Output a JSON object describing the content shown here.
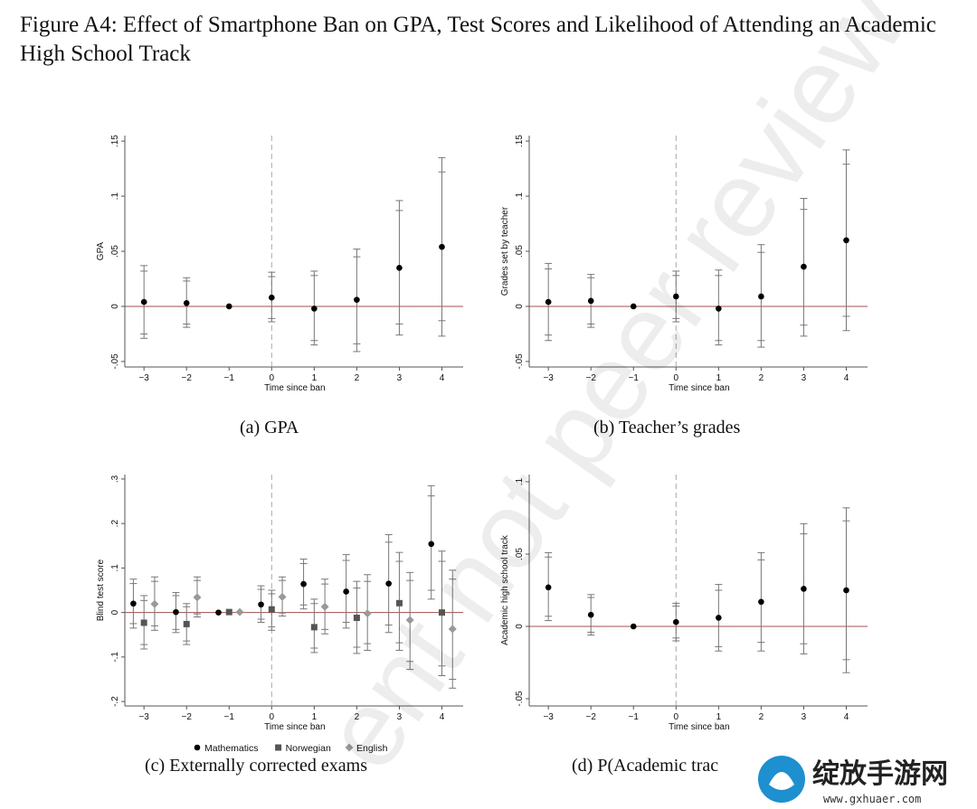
{
  "figure_title": "Figure A4: Effect of Smartphone Ban on GPA, Test Scores and Likelihood of Attending an Academic High School Track",
  "watermark_text": "ent not peer review",
  "logo": {
    "text": "绽放手游网",
    "url": "www.gxhuaer.com"
  },
  "colors": {
    "zero_line": "#a05050",
    "dashed": "#aaaaaa",
    "axis": "#555555",
    "series_math": "#000000",
    "series_nor": "#555555",
    "series_eng": "#999999"
  },
  "chart_data": [
    {
      "id": "a",
      "type": "scatter",
      "caption": "(a) GPA",
      "xlabel": "Time since ban",
      "ylabel": "GPA",
      "x_ticks": [
        -3,
        -2,
        -1,
        0,
        1,
        2,
        3,
        4
      ],
      "x_tick_labels": [
        "−3",
        "−2",
        "−1",
        "0",
        "1",
        "2",
        "3",
        "4"
      ],
      "y_ticks": [
        -0.05,
        0,
        0.05,
        0.1,
        0.15
      ],
      "y_tick_labels": [
        "-.05",
        "0",
        ".05",
        ".1",
        ".15"
      ],
      "ylim": [
        -0.055,
        0.155
      ],
      "xlim": [
        -3.45,
        4.5
      ],
      "series": [
        {
          "marker": "circle",
          "color": "#000000",
          "offset": 0,
          "points": [
            {
              "x": -3,
              "y": 0.004,
              "ci95": [
                -0.029,
                0.037
              ],
              "ci90": [
                -0.025,
                0.032
              ]
            },
            {
              "x": -2,
              "y": 0.003,
              "ci95": [
                -0.019,
                0.026
              ],
              "ci90": [
                -0.016,
                0.023
              ]
            },
            {
              "x": -1,
              "y": 0.0,
              "ci95": null,
              "ci90": null
            },
            {
              "x": 0,
              "y": 0.008,
              "ci95": [
                -0.014,
                0.031
              ],
              "ci90": [
                -0.011,
                0.027
              ]
            },
            {
              "x": 1,
              "y": -0.002,
              "ci95": [
                -0.035,
                0.032
              ],
              "ci90": [
                -0.031,
                0.028
              ]
            },
            {
              "x": 2,
              "y": 0.006,
              "ci95": [
                -0.041,
                0.052
              ],
              "ci90": [
                -0.034,
                0.045
              ]
            },
            {
              "x": 3,
              "y": 0.035,
              "ci95": [
                -0.026,
                0.096
              ],
              "ci90": [
                -0.016,
                0.087
              ]
            },
            {
              "x": 4,
              "y": 0.054,
              "ci95": [
                -0.027,
                0.135
              ],
              "ci90": [
                -0.013,
                0.122
              ]
            }
          ]
        }
      ]
    },
    {
      "id": "b",
      "type": "scatter",
      "caption": "(b) Teacher’s grades",
      "xlabel": "Time since ban",
      "ylabel": "Grades set by teacher",
      "x_ticks": [
        -3,
        -2,
        -1,
        0,
        1,
        2,
        3,
        4
      ],
      "x_tick_labels": [
        "−3",
        "−2",
        "−1",
        "0",
        "1",
        "2",
        "3",
        "4"
      ],
      "y_ticks": [
        -0.05,
        0,
        0.05,
        0.1,
        0.15
      ],
      "y_tick_labels": [
        "-.05",
        "0",
        ".05",
        ".1",
        ".15"
      ],
      "ylim": [
        -0.055,
        0.155
      ],
      "xlim": [
        -3.45,
        4.5
      ],
      "series": [
        {
          "marker": "circle",
          "color": "#000000",
          "offset": 0,
          "points": [
            {
              "x": -3,
              "y": 0.004,
              "ci95": [
                -0.031,
                0.039
              ],
              "ci90": [
                -0.026,
                0.034
              ]
            },
            {
              "x": -2,
              "y": 0.005,
              "ci95": [
                -0.019,
                0.029
              ],
              "ci90": [
                -0.016,
                0.026
              ]
            },
            {
              "x": -1,
              "y": 0.0,
              "ci95": null,
              "ci90": null
            },
            {
              "x": 0,
              "y": 0.009,
              "ci95": [
                -0.014,
                0.032
              ],
              "ci90": [
                -0.011,
                0.028
              ]
            },
            {
              "x": 1,
              "y": -0.002,
              "ci95": [
                -0.035,
                0.033
              ],
              "ci90": [
                -0.031,
                0.028
              ]
            },
            {
              "x": 2,
              "y": 0.009,
              "ci95": [
                -0.037,
                0.056
              ],
              "ci90": [
                -0.031,
                0.049
              ]
            },
            {
              "x": 3,
              "y": 0.036,
              "ci95": [
                -0.027,
                0.098
              ],
              "ci90": [
                -0.017,
                0.088
              ]
            },
            {
              "x": 4,
              "y": 0.06,
              "ci95": [
                -0.022,
                0.142
              ],
              "ci90": [
                -0.009,
                0.129
              ]
            }
          ]
        }
      ]
    },
    {
      "id": "c",
      "type": "scatter",
      "caption": "(c) Externally corrected exams",
      "xlabel": "Time since ban",
      "ylabel": "Blind test score",
      "x_ticks": [
        -3,
        -2,
        -1,
        0,
        1,
        2,
        3,
        4
      ],
      "x_tick_labels": [
        "−3",
        "−2",
        "−1",
        "0",
        "1",
        "2",
        "3",
        "4"
      ],
      "y_ticks": [
        -0.2,
        -0.1,
        0,
        0.1,
        0.2,
        0.3
      ],
      "y_tick_labels": [
        "-.2",
        "-.1",
        "0",
        ".1",
        ".2",
        ".3"
      ],
      "ylim": [
        -0.21,
        0.31
      ],
      "xlim": [
        -3.45,
        4.5
      ],
      "legend": {
        "position": "bottom"
      },
      "series": [
        {
          "name": "Mathematics",
          "marker": "circle",
          "color": "#000000",
          "offset": -0.25,
          "points": [
            {
              "x": -3,
              "y": 0.02,
              "ci95": [
                -0.035,
                0.075
              ],
              "ci90": [
                -0.025,
                0.065
              ]
            },
            {
              "x": -2,
              "y": 0.001,
              "ci95": [
                -0.045,
                0.045
              ],
              "ci90": [
                -0.038,
                0.038
              ]
            },
            {
              "x": -1,
              "y": 0.0,
              "ci95": null,
              "ci90": null
            },
            {
              "x": 0,
              "y": 0.018,
              "ci95": [
                -0.022,
                0.06
              ],
              "ci90": [
                -0.015,
                0.052
              ]
            },
            {
              "x": 1,
              "y": 0.064,
              "ci95": [
                0.008,
                0.12
              ],
              "ci90": [
                0.017,
                0.11
              ]
            },
            {
              "x": 2,
              "y": 0.047,
              "ci95": [
                -0.035,
                0.13
              ],
              "ci90": [
                -0.022,
                0.117
              ]
            },
            {
              "x": 3,
              "y": 0.065,
              "ci95": [
                -0.045,
                0.175
              ],
              "ci90": [
                -0.028,
                0.158
              ]
            },
            {
              "x": 4,
              "y": 0.154,
              "ci95": [
                0.03,
                0.285
              ],
              "ci90": [
                0.05,
                0.262
              ]
            }
          ]
        },
        {
          "name": "Norwegian",
          "marker": "square",
          "color": "#555555",
          "offset": 0,
          "points": [
            {
              "x": -3,
              "y": -0.023,
              "ci95": [
                -0.082,
                0.038
              ],
              "ci90": [
                -0.072,
                0.027
              ]
            },
            {
              "x": -2,
              "y": -0.026,
              "ci95": [
                -0.072,
                0.02
              ],
              "ci90": [
                -0.064,
                0.013
              ]
            },
            {
              "x": -1,
              "y": 0.001,
              "ci95": null,
              "ci90": null
            },
            {
              "x": 0,
              "y": 0.007,
              "ci95": [
                -0.04,
                0.05
              ],
              "ci90": [
                -0.032,
                0.042
              ]
            },
            {
              "x": 1,
              "y": -0.033,
              "ci95": [
                -0.09,
                0.03
              ],
              "ci90": [
                -0.08,
                0.02
              ]
            },
            {
              "x": 2,
              "y": -0.012,
              "ci95": [
                -0.092,
                0.07
              ],
              "ci90": [
                -0.078,
                0.055
              ]
            },
            {
              "x": 3,
              "y": 0.021,
              "ci95": [
                -0.085,
                0.135
              ],
              "ci90": [
                -0.068,
                0.115
              ]
            },
            {
              "x": 4,
              "y": 0.0,
              "ci95": [
                -0.142,
                0.138
              ],
              "ci90": [
                -0.12,
                0.115
              ]
            }
          ]
        },
        {
          "name": "English",
          "marker": "diamond",
          "color": "#999999",
          "offset": 0.25,
          "points": [
            {
              "x": -3,
              "y": 0.019,
              "ci95": [
                -0.04,
                0.08
              ],
              "ci90": [
                -0.03,
                0.07
              ]
            },
            {
              "x": -2,
              "y": 0.034,
              "ci95": [
                -0.01,
                0.08
              ],
              "ci90": [
                -0.003,
                0.072
              ]
            },
            {
              "x": -1,
              "y": 0.001,
              "ci95": null,
              "ci90": null
            },
            {
              "x": 0,
              "y": 0.035,
              "ci95": [
                -0.008,
                0.08
              ],
              "ci90": [
                -0.001,
                0.072
              ]
            },
            {
              "x": 1,
              "y": 0.013,
              "ci95": [
                -0.048,
                0.075
              ],
              "ci90": [
                -0.038,
                0.064
              ]
            },
            {
              "x": 2,
              "y": -0.002,
              "ci95": [
                -0.085,
                0.085
              ],
              "ci90": [
                -0.07,
                0.07
              ]
            },
            {
              "x": 3,
              "y": -0.017,
              "ci95": [
                -0.128,
                0.09
              ],
              "ci90": [
                -0.11,
                0.072
              ]
            },
            {
              "x": 4,
              "y": -0.037,
              "ci95": [
                -0.17,
                0.095
              ],
              "ci90": [
                -0.15,
                0.075
              ]
            }
          ]
        }
      ]
    },
    {
      "id": "d",
      "type": "scatter",
      "caption": "(d) P(Academic trac",
      "xlabel": "Time since ban",
      "ylabel": "Academic high school track",
      "x_ticks": [
        -3,
        -2,
        -1,
        0,
        1,
        2,
        3,
        4
      ],
      "x_tick_labels": [
        "−3",
        "−2",
        "−1",
        "0",
        "1",
        "2",
        "3",
        "4"
      ],
      "y_ticks": [
        -0.05,
        0,
        0.05,
        0.1
      ],
      "y_tick_labels": [
        "-.05",
        "0",
        ".05",
        ".1"
      ],
      "ylim": [
        -0.055,
        0.105
      ],
      "xlim": [
        -3.45,
        4.5
      ],
      "series": [
        {
          "marker": "circle",
          "color": "#000000",
          "offset": 0,
          "points": [
            {
              "x": -3,
              "y": 0.027,
              "ci95": [
                0.004,
                0.051
              ],
              "ci90": [
                0.007,
                0.048
              ]
            },
            {
              "x": -2,
              "y": 0.008,
              "ci95": [
                -0.006,
                0.022
              ],
              "ci90": [
                -0.004,
                0.02
              ]
            },
            {
              "x": -1,
              "y": 0.0,
              "ci95": null,
              "ci90": null
            },
            {
              "x": 0,
              "y": 0.003,
              "ci95": [
                -0.01,
                0.016
              ],
              "ci90": [
                -0.008,
                0.014
              ]
            },
            {
              "x": 1,
              "y": 0.006,
              "ci95": [
                -0.017,
                0.029
              ],
              "ci90": [
                -0.014,
                0.025
              ]
            },
            {
              "x": 2,
              "y": 0.017,
              "ci95": [
                -0.017,
                0.051
              ],
              "ci90": [
                -0.011,
                0.046
              ]
            },
            {
              "x": 3,
              "y": 0.026,
              "ci95": [
                -0.019,
                0.071
              ],
              "ci90": [
                -0.012,
                0.064
              ]
            },
            {
              "x": 4,
              "y": 0.025,
              "ci95": [
                -0.032,
                0.082
              ],
              "ci90": [
                -0.023,
                0.073
              ]
            }
          ]
        }
      ]
    }
  ]
}
